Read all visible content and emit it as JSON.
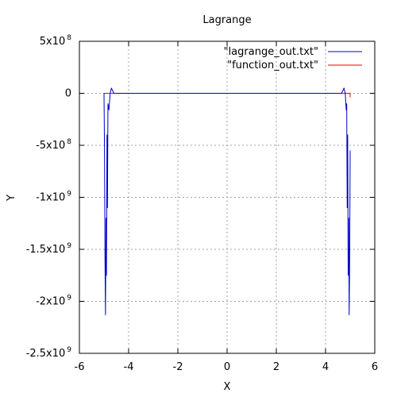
{
  "chart_data": {
    "type": "line",
    "title": "Lagrange",
    "xlabel": "X",
    "ylabel": "Y",
    "xlim": [
      -6,
      6
    ],
    "ylim": [
      -2500000000,
      500000000
    ],
    "grid": true,
    "legend_position": "top-right",
    "x_ticks": [
      {
        "value": -6,
        "label": "-6"
      },
      {
        "value": -4,
        "label": "-4"
      },
      {
        "value": -2,
        "label": "-2"
      },
      {
        "value": 0,
        "label": "0"
      },
      {
        "value": 2,
        "label": "2"
      },
      {
        "value": 4,
        "label": "4"
      },
      {
        "value": 6,
        "label": "6"
      }
    ],
    "y_ticks": [
      {
        "value": 500000000,
        "mantissa": "5x10",
        "exp": "8"
      },
      {
        "value": 0,
        "mantissa": "0",
        "exp": ""
      },
      {
        "value": -500000000,
        "mantissa": "-5x10",
        "exp": "8"
      },
      {
        "value": -1000000000,
        "mantissa": "-1x10",
        "exp": "9"
      },
      {
        "value": -1500000000,
        "mantissa": "-1.5x10",
        "exp": "9"
      },
      {
        "value": -2000000000,
        "mantissa": "-2x10",
        "exp": "9"
      },
      {
        "value": -2500000000,
        "mantissa": "-2.5x10",
        "exp": "9"
      }
    ],
    "series": [
      {
        "name": "\"lagrange_out.txt\"",
        "color": "#0000cc",
        "x": [
          -5.0,
          -4.98,
          -4.96,
          -4.94,
          -4.92,
          -4.9,
          -4.88,
          -4.86,
          -4.84,
          -4.8,
          -4.75,
          -4.7,
          -4.65,
          -4.6,
          -4.55,
          -4.5,
          -4.0,
          0,
          4.0,
          4.5,
          4.55,
          4.6,
          4.65,
          4.7,
          4.75,
          4.8,
          4.84,
          4.86,
          4.88,
          4.9,
          4.92,
          4.94,
          4.96,
          4.98,
          5.0
        ],
        "y": [
          0,
          -550000000,
          -1600000000,
          -2130000000,
          -1200000000,
          -1750000000,
          -400000000,
          -1100000000,
          -100000000,
          -160000000,
          0,
          50000000,
          25000000,
          0,
          0,
          0,
          0,
          0,
          0,
          0,
          0,
          0,
          0,
          25000000,
          50000000,
          0,
          -160000000,
          -100000000,
          -1100000000,
          -400000000,
          -1750000000,
          -1200000000,
          -2130000000,
          -1600000000,
          -550000000
        ]
      },
      {
        "name": "\"function_out.txt\"",
        "color": "#ff0000",
        "x": [
          -5.0,
          -5.0,
          5.0,
          5.0
        ],
        "y": [
          -40000000,
          0,
          0,
          -40000000
        ]
      }
    ]
  }
}
